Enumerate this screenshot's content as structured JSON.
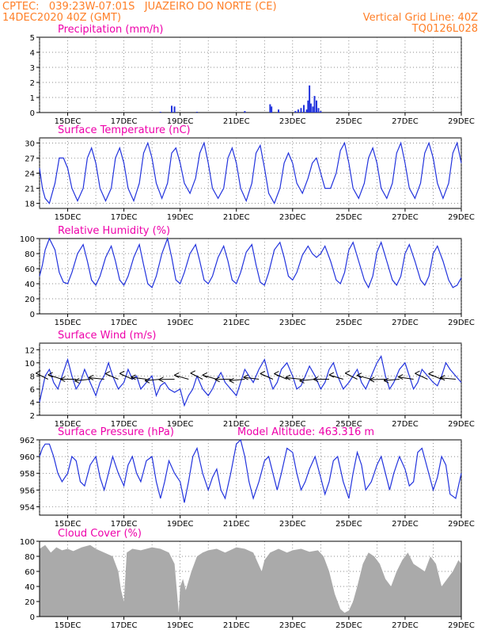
{
  "header": {
    "line1_left": "CPTEC:   039:23W-07:01S   JUAZEIRO DO NORTE (CE)",
    "line2_left": "14DEC2020 40Z (GMT)",
    "line2_right": "Vertical Grid Line: 40Z",
    "line3_right": "TQ0126L028"
  },
  "colors": {
    "header": "#ff7f27",
    "title": "#ee00aa",
    "series": "#2233dd",
    "bars": "#2233dd",
    "cloud": "#aaaaaa",
    "arrow": "#000000"
  },
  "x_ticks": [
    "15DEC",
    "17DEC",
    "19DEC",
    "21DEC",
    "23DEC",
    "25DEC",
    "27DEC",
    "29DEC"
  ],
  "chart_data": [
    {
      "type": "bar",
      "title": "Precipitation (mm/h)",
      "x_range_days": [
        14.0,
        29.0
      ],
      "ylim": [
        0,
        5
      ],
      "yticks": [
        0,
        1,
        2,
        3,
        4,
        5
      ],
      "bars": [
        {
          "x": 18.3,
          "y": 0.05
        },
        {
          "x": 18.7,
          "y": 0.45
        },
        {
          "x": 18.8,
          "y": 0.4
        },
        {
          "x": 19.6,
          "y": 0.05
        },
        {
          "x": 21.3,
          "y": 0.1
        },
        {
          "x": 22.2,
          "y": 0.55
        },
        {
          "x": 22.25,
          "y": 0.4
        },
        {
          "x": 22.5,
          "y": 0.2
        },
        {
          "x": 23.1,
          "y": 0.1
        },
        {
          "x": 23.2,
          "y": 0.2
        },
        {
          "x": 23.3,
          "y": 0.3
        },
        {
          "x": 23.4,
          "y": 0.5
        },
        {
          "x": 23.5,
          "y": 0.2
        },
        {
          "x": 23.55,
          "y": 0.8
        },
        {
          "x": 23.6,
          "y": 1.8
        },
        {
          "x": 23.65,
          "y": 0.6
        },
        {
          "x": 23.72,
          "y": 0.4
        },
        {
          "x": 23.78,
          "y": 1.1
        },
        {
          "x": 23.85,
          "y": 0.8
        },
        {
          "x": 23.92,
          "y": 0.3
        },
        {
          "x": 24.0,
          "y": 0.1
        }
      ]
    },
    {
      "type": "line",
      "title": "Surface Temperature (nC)",
      "x_range_days": [
        14.0,
        29.0
      ],
      "ylim": [
        17,
        31
      ],
      "yticks": [
        18,
        21,
        24,
        27,
        30
      ],
      "x": [
        14.0,
        14.1,
        14.2,
        14.35,
        14.55,
        14.7,
        14.85,
        15.0,
        15.15,
        15.35,
        15.55,
        15.7,
        15.85,
        16.0,
        16.15,
        16.35,
        16.55,
        16.7,
        16.85,
        17.0,
        17.15,
        17.35,
        17.55,
        17.7,
        17.85,
        18.0,
        18.15,
        18.35,
        18.55,
        18.7,
        18.85,
        19.0,
        19.15,
        19.35,
        19.55,
        19.7,
        19.85,
        20.0,
        20.15,
        20.35,
        20.55,
        20.7,
        20.85,
        21.0,
        21.15,
        21.35,
        21.55,
        21.7,
        21.85,
        22.0,
        22.15,
        22.35,
        22.55,
        22.7,
        22.85,
        23.0,
        23.15,
        23.35,
        23.55,
        23.7,
        23.85,
        24.0,
        24.15,
        24.35,
        24.55,
        24.7,
        24.85,
        25.0,
        25.15,
        25.35,
        25.55,
        25.7,
        25.85,
        26.0,
        26.15,
        26.35,
        26.55,
        26.7,
        26.85,
        27.0,
        27.15,
        27.35,
        27.55,
        27.7,
        27.85,
        28.0,
        28.15,
        28.35,
        28.55,
        28.7,
        28.85,
        29.0
      ],
      "y": [
        25,
        21,
        19,
        18,
        22,
        27,
        27,
        25,
        21,
        18.5,
        21,
        27,
        29,
        26,
        21,
        18.5,
        21,
        27,
        29,
        26,
        21,
        18.5,
        22,
        28,
        30,
        27,
        22,
        19,
        22,
        28,
        29,
        26,
        22,
        20,
        23,
        28,
        30,
        26,
        21,
        19,
        21,
        27,
        29,
        26,
        21,
        18.5,
        22,
        28,
        29.5,
        25,
        20,
        18,
        21,
        26,
        28,
        26,
        22,
        20,
        23,
        26,
        27,
        24,
        21,
        21,
        24,
        28.5,
        30,
        26,
        21,
        19,
        22,
        27,
        29,
        26,
        21,
        19,
        22,
        28,
        30,
        26,
        21,
        19,
        22,
        28,
        30,
        27,
        22,
        19,
        22,
        28,
        30,
        26
      ]
    },
    {
      "type": "line",
      "title": "Relative Humidity (%)",
      "x_range_days": [
        14.0,
        29.0
      ],
      "ylim": [
        0,
        100
      ],
      "yticks": [
        0,
        20,
        40,
        60,
        80,
        100
      ],
      "x": [
        14.0,
        14.1,
        14.2,
        14.35,
        14.55,
        14.7,
        14.85,
        15.0,
        15.15,
        15.35,
        15.55,
        15.7,
        15.85,
        16.0,
        16.15,
        16.35,
        16.55,
        16.7,
        16.85,
        17.0,
        17.15,
        17.35,
        17.55,
        17.7,
        17.85,
        18.0,
        18.15,
        18.35,
        18.55,
        18.7,
        18.85,
        19.0,
        19.15,
        19.35,
        19.55,
        19.7,
        19.85,
        20.0,
        20.15,
        20.35,
        20.55,
        20.7,
        20.85,
        21.0,
        21.15,
        21.35,
        21.55,
        21.7,
        21.85,
        22.0,
        22.15,
        22.35,
        22.55,
        22.7,
        22.85,
        23.0,
        23.15,
        23.35,
        23.55,
        23.7,
        23.85,
        24.0,
        24.15,
        24.35,
        24.55,
        24.7,
        24.85,
        25.0,
        25.15,
        25.35,
        25.55,
        25.7,
        25.85,
        26.0,
        26.15,
        26.35,
        26.55,
        26.7,
        26.85,
        27.0,
        27.15,
        27.35,
        27.55,
        27.7,
        27.85,
        28.0,
        28.15,
        28.35,
        28.55,
        28.7,
        28.85,
        29.0
      ],
      "y": [
        50,
        65,
        85,
        100,
        85,
        55,
        42,
        40,
        55,
        80,
        92,
        70,
        45,
        38,
        50,
        75,
        90,
        70,
        45,
        38,
        50,
        75,
        92,
        65,
        40,
        35,
        50,
        80,
        100,
        75,
        45,
        40,
        55,
        80,
        92,
        70,
        45,
        40,
        50,
        75,
        90,
        70,
        45,
        40,
        55,
        82,
        92,
        65,
        42,
        38,
        55,
        85,
        95,
        75,
        50,
        45,
        55,
        78,
        90,
        80,
        75,
        80,
        90,
        70,
        45,
        40,
        55,
        85,
        95,
        70,
        45,
        35,
        50,
        82,
        95,
        70,
        45,
        38,
        50,
        80,
        92,
        70,
        45,
        38,
        50,
        80,
        90,
        70,
        45,
        35,
        38,
        48
      ]
    },
    {
      "type": "line",
      "title": "Surface Wind (m/s)",
      "x_range_days": [
        14.0,
        29.0
      ],
      "ylim": [
        2,
        13
      ],
      "yticks": [
        2,
        4,
        6,
        8,
        10,
        12
      ],
      "x": [
        14.0,
        14.1,
        14.2,
        14.35,
        14.5,
        14.65,
        14.8,
        15.0,
        15.15,
        15.3,
        15.45,
        15.6,
        15.8,
        16.0,
        16.15,
        16.3,
        16.45,
        16.6,
        16.8,
        17.0,
        17.15,
        17.3,
        17.45,
        17.6,
        17.8,
        18.0,
        18.15,
        18.3,
        18.45,
        18.6,
        18.8,
        19.0,
        19.15,
        19.3,
        19.45,
        19.6,
        19.8,
        20.0,
        20.15,
        20.3,
        20.45,
        20.6,
        20.8,
        21.0,
        21.15,
        21.3,
        21.45,
        21.6,
        21.8,
        22.0,
        22.15,
        22.3,
        22.45,
        22.6,
        22.8,
        23.0,
        23.15,
        23.3,
        23.45,
        23.6,
        23.8,
        24.0,
        24.15,
        24.3,
        24.45,
        24.6,
        24.8,
        25.0,
        25.15,
        25.3,
        25.45,
        25.6,
        25.8,
        26.0,
        26.15,
        26.3,
        26.45,
        26.6,
        26.8,
        27.0,
        27.15,
        27.3,
        27.45,
        27.6,
        27.8,
        28.0,
        28.15,
        28.3,
        28.45,
        28.6,
        28.8,
        29.0
      ],
      "y": [
        4,
        6,
        8,
        9,
        7,
        6,
        8,
        10.5,
        8,
        6,
        7,
        9,
        7,
        5,
        7,
        8,
        10,
        8,
        6,
        7,
        9,
        7.5,
        8,
        6,
        7,
        8,
        5,
        6.5,
        7,
        6,
        5.5,
        6,
        3.5,
        5,
        6,
        8,
        6,
        5,
        6,
        7.5,
        8.5,
        7,
        6,
        5,
        7,
        9,
        8,
        7,
        9,
        10.5,
        8,
        6,
        7,
        9,
        10,
        8,
        6,
        6.5,
        8,
        9.5,
        8,
        6,
        7,
        9,
        10,
        8,
        6,
        7,
        8,
        9,
        7,
        6,
        8,
        10,
        11,
        8,
        6,
        7,
        9,
        10,
        8,
        6,
        7,
        9,
        8,
        7,
        6.5,
        8,
        10,
        9,
        8,
        7
      ]
    },
    {
      "type": "line",
      "title": "Surface Pressure (hPa)",
      "annotation": "Model Altitude: 463.316 m",
      "x_range_days": [
        14.0,
        29.0
      ],
      "ylim": [
        953,
        962
      ],
      "yticks": [
        954,
        956,
        958,
        960,
        962
      ],
      "x": [
        14.0,
        14.1,
        14.2,
        14.35,
        14.5,
        14.65,
        14.8,
        15.0,
        15.15,
        15.3,
        15.45,
        15.6,
        15.8,
        16.0,
        16.15,
        16.3,
        16.45,
        16.6,
        16.8,
        17.0,
        17.15,
        17.3,
        17.45,
        17.6,
        17.8,
        18.0,
        18.15,
        18.3,
        18.45,
        18.6,
        18.8,
        19.0,
        19.15,
        19.3,
        19.45,
        19.6,
        19.8,
        20.0,
        20.15,
        20.3,
        20.45,
        20.6,
        20.8,
        21.0,
        21.15,
        21.3,
        21.45,
        21.6,
        21.8,
        22.0,
        22.15,
        22.3,
        22.45,
        22.6,
        22.8,
        23.0,
        23.15,
        23.3,
        23.45,
        23.6,
        23.8,
        24.0,
        24.15,
        24.3,
        24.45,
        24.6,
        24.8,
        25.0,
        25.15,
        25.3,
        25.45,
        25.6,
        25.8,
        26.0,
        26.15,
        26.3,
        26.45,
        26.6,
        26.8,
        27.0,
        27.15,
        27.3,
        27.45,
        27.6,
        27.8,
        28.0,
        28.15,
        28.3,
        28.45,
        28.6,
        28.8,
        29.0
      ],
      "y": [
        960,
        961,
        961.5,
        961.5,
        960,
        958,
        957,
        958,
        960,
        959.5,
        957,
        956.5,
        959,
        960,
        957.5,
        956,
        958,
        960,
        958,
        956.5,
        959,
        960,
        958,
        957,
        959.5,
        960,
        957,
        955,
        957,
        959.5,
        958,
        957,
        954.5,
        957,
        960,
        961,
        958,
        956,
        957.5,
        958.5,
        956,
        955,
        958,
        961.5,
        962,
        960,
        957,
        955,
        957,
        959.5,
        960,
        958,
        956,
        958,
        961,
        960.5,
        958,
        956,
        957,
        958.5,
        960,
        957.5,
        955.5,
        957,
        959.5,
        960,
        957,
        955,
        958,
        960.5,
        959,
        956,
        957,
        959,
        960,
        958,
        956,
        958,
        960,
        958.5,
        956.5,
        957,
        960.5,
        961,
        958.5,
        956,
        957.5,
        960,
        959,
        955.5,
        955,
        958
      ]
    },
    {
      "type": "area",
      "title": "Cloud Cover (%)",
      "x_range_days": [
        14.0,
        29.0
      ],
      "ylim": [
        0,
        100
      ],
      "yticks": [
        0,
        20,
        40,
        60,
        80,
        100
      ],
      "x": [
        14.0,
        14.2,
        14.4,
        14.6,
        14.8,
        15.0,
        15.2,
        15.5,
        15.8,
        16.0,
        16.3,
        16.6,
        16.8,
        16.9,
        17.0,
        17.1,
        17.3,
        17.6,
        18.0,
        18.3,
        18.6,
        18.8,
        18.95,
        19.0,
        19.1,
        19.2,
        19.4,
        19.6,
        19.8,
        20.0,
        20.3,
        20.6,
        21.0,
        21.3,
        21.6,
        21.9,
        22.0,
        22.2,
        22.5,
        22.8,
        23.0,
        23.3,
        23.6,
        23.9,
        24.1,
        24.3,
        24.5,
        24.7,
        24.85,
        25.0,
        25.15,
        25.3,
        25.5,
        25.7,
        25.9,
        26.1,
        26.3,
        26.5,
        26.7,
        26.9,
        27.1,
        27.3,
        27.5,
        27.7,
        27.9,
        28.1,
        28.3,
        28.5,
        28.7,
        28.9,
        29.0
      ],
      "y": [
        90,
        95,
        85,
        92,
        88,
        90,
        87,
        92,
        95,
        90,
        85,
        80,
        60,
        35,
        20,
        85,
        90,
        88,
        92,
        90,
        85,
        70,
        5,
        40,
        50,
        35,
        60,
        80,
        85,
        88,
        90,
        85,
        92,
        90,
        85,
        60,
        75,
        85,
        90,
        85,
        88,
        90,
        86,
        88,
        80,
        60,
        30,
        10,
        5,
        8,
        20,
        40,
        70,
        85,
        80,
        70,
        50,
        40,
        60,
        75,
        85,
        70,
        65,
        60,
        80,
        70,
        40,
        50,
        60,
        75,
        70
      ]
    }
  ]
}
